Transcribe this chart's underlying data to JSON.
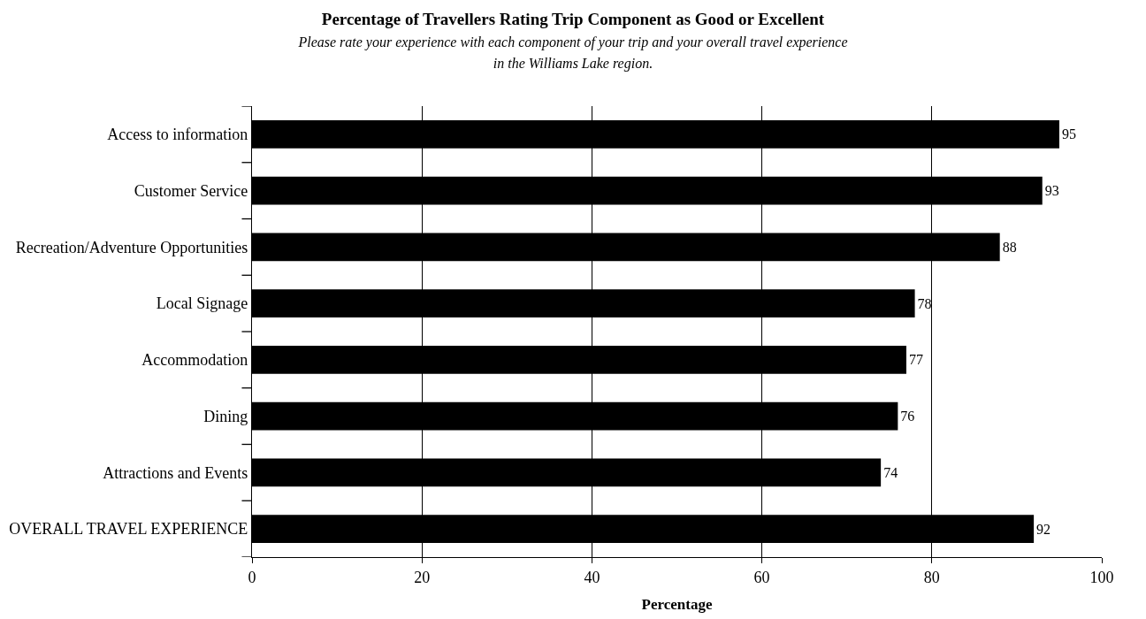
{
  "chart_data": {
    "type": "bar",
    "orientation": "horizontal",
    "title": "Percentage of Travellers Rating Trip Component as Good or Excellent",
    "subtitle": "Please rate your experience with each component of your trip and your overall travel experience in the Williams Lake region.",
    "xlabel": "Percentage",
    "categories": [
      "Access to information",
      "Customer Service",
      "Recreation/Adventure Opportunities",
      "Local Signage",
      "Accommodation",
      "Dining",
      "Attractions and Events",
      "OVERALL TRAVEL EXPERIENCE"
    ],
    "values": [
      95,
      93,
      88,
      78,
      77,
      76,
      74,
      92
    ],
    "color": "#000000",
    "xlim": [
      0,
      100
    ],
    "xticks": [
      0,
      20,
      40,
      60,
      80,
      100
    ],
    "grid": "x",
    "data_labels": true
  }
}
